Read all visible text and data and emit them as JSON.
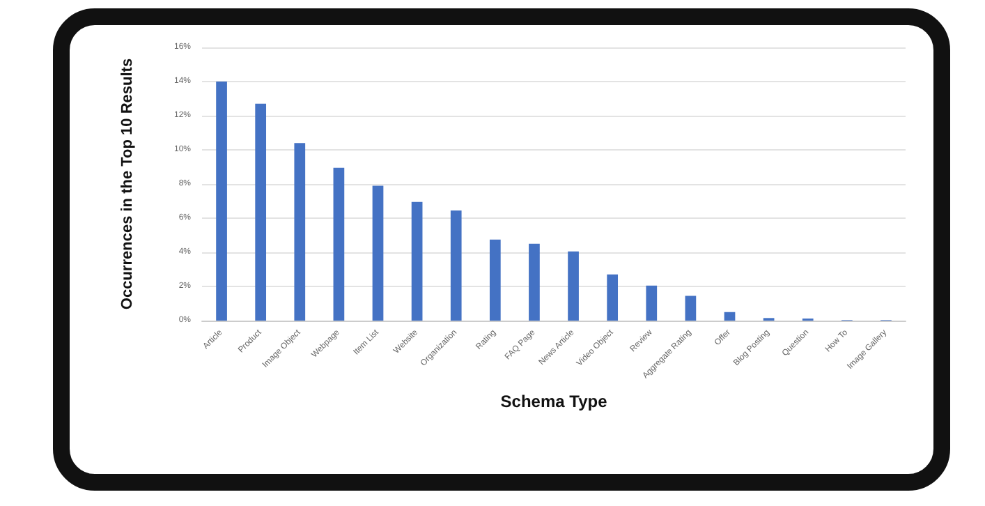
{
  "chart_data": {
    "type": "bar",
    "xlabel": "Schema Type",
    "ylabel": "Occurrences in the Top 10 Results",
    "categories": [
      "Article",
      "Product",
      "Image Object",
      "Webpage",
      "Item List",
      "Website",
      "Organization",
      "Rating",
      "FAQ Page",
      "News Article",
      "Video Object",
      "Review",
      "Aggregate Rating",
      "Offer",
      "Blog Posting",
      "Question",
      "How To",
      "Image Gallery"
    ],
    "values": [
      14,
      12.7,
      10.4,
      8.95,
      7.9,
      6.95,
      6.45,
      4.75,
      4.5,
      4.05,
      2.7,
      2.05,
      1.45,
      0.5,
      0.15,
      0.12,
      0.03,
      0.03
    ],
    "color": "#4472c4",
    "ylim": [
      0,
      16
    ],
    "yticks": [
      {
        "value": 0,
        "label": "0%"
      },
      {
        "value": 2,
        "label": "2%"
      },
      {
        "value": 4,
        "label": "4%"
      },
      {
        "value": 6,
        "label": "6%"
      },
      {
        "value": 8,
        "label": "8%"
      },
      {
        "value": 10,
        "label": "10%"
      },
      {
        "value": 12,
        "label": "12%"
      },
      {
        "value": 14,
        "label": "14%"
      },
      {
        "value": 16,
        "label": "16%"
      }
    ],
    "grid": "y"
  }
}
